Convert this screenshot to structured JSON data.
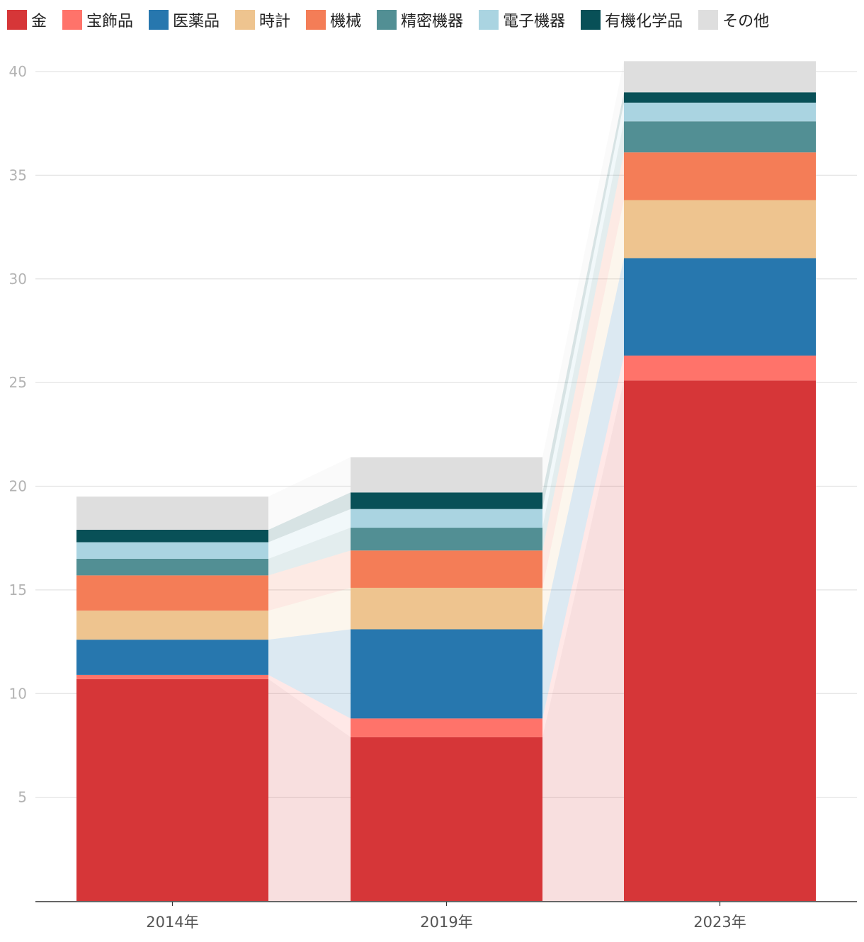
{
  "chart_data": {
    "type": "bar",
    "stacked": true,
    "categories": [
      "2014年",
      "2019年",
      "2023年"
    ],
    "series": [
      {
        "name": "金",
        "color": "#d63638",
        "values": [
          10.7,
          7.9,
          25.1
        ]
      },
      {
        "name": "宝飾品",
        "color": "#ff736a",
        "values": [
          0.2,
          0.9,
          1.2
        ]
      },
      {
        "name": "医薬品",
        "color": "#2777ae",
        "values": [
          1.7,
          4.3,
          4.7
        ]
      },
      {
        "name": "時計",
        "color": "#eec48f",
        "values": [
          1.4,
          2.0,
          2.8
        ]
      },
      {
        "name": "機械",
        "color": "#f47d57",
        "values": [
          1.7,
          1.8,
          2.3
        ]
      },
      {
        "name": "精密機器",
        "color": "#528f94",
        "values": [
          0.8,
          1.1,
          1.5
        ]
      },
      {
        "name": "電子機器",
        "color": "#aad4e1",
        "values": [
          0.8,
          0.9,
          0.9
        ]
      },
      {
        "name": "有機化学品",
        "color": "#085057",
        "values": [
          0.6,
          0.8,
          0.5
        ]
      },
      {
        "name": "その他",
        "color": "#dedede",
        "values": [
          1.6,
          1.7,
          1.5
        ]
      }
    ],
    "ylim": [
      0,
      40
    ],
    "yticks": [
      5,
      10,
      15,
      20,
      25,
      30,
      35,
      40
    ],
    "grid": true,
    "legend": "top-left",
    "title": "",
    "xlabel": "",
    "ylabel": ""
  }
}
